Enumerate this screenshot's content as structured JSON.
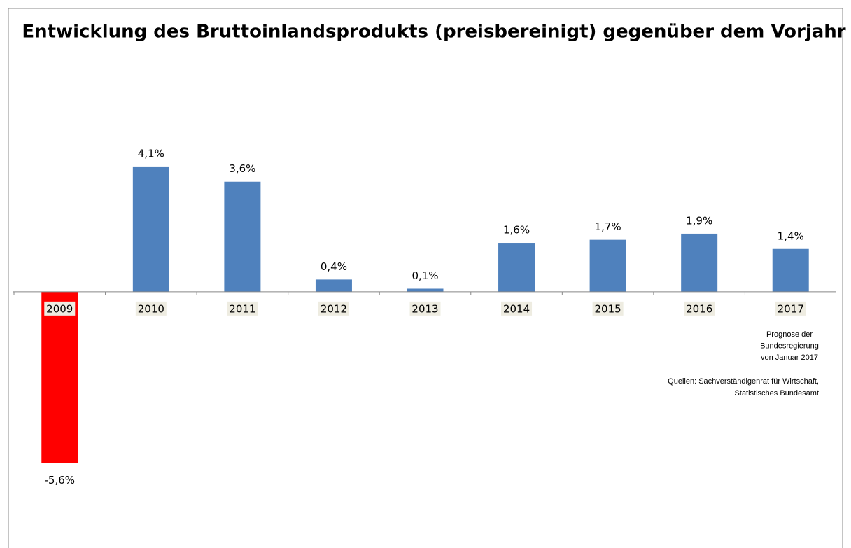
{
  "chart_data": {
    "type": "bar",
    "title": "Entwicklung des Bruttoinlandsprodukts (preisbereinigt) gegenüber dem Vorjahr",
    "categories": [
      "2009",
      "2010",
      "2011",
      "2012",
      "2013",
      "2014",
      "2015",
      "2016",
      "2017"
    ],
    "values": [
      -5.6,
      4.1,
      3.6,
      0.4,
      0.1,
      1.6,
      1.7,
      1.9,
      1.4
    ],
    "value_labels": [
      "-5,6%",
      "4,1%",
      "3,6%",
      "0,4%",
      "0,1%",
      "1,6%",
      "1,7%",
      "1,9%",
      "1,4%"
    ],
    "colors": [
      "#ff0000",
      "#4f81bd",
      "#4f81bd",
      "#4f81bd",
      "#4f81bd",
      "#4f81bd",
      "#4f81bd",
      "#4f81bd",
      "#4f81bd"
    ],
    "ylim": [
      -8,
      6
    ],
    "annotations": [
      [
        "Prognose der",
        "Bundesregierung",
        "von Januar 2017"
      ],
      [
        "Quellen: Sachverständigenrat für Wirtschaft,",
        "Statistisches Bundesamt"
      ]
    ]
  }
}
